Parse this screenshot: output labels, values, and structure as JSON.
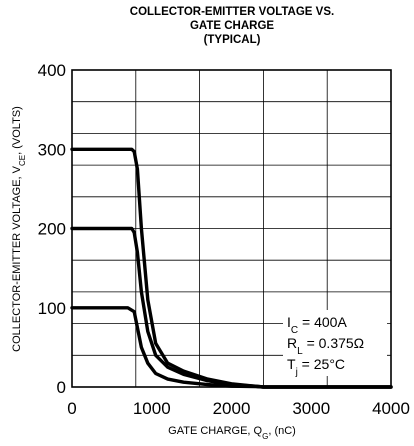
{
  "chart_data": {
    "type": "line",
    "title": [
      "COLLECTOR-EMITTER VOLTAGE VS.",
      "GATE CHARGE",
      "(TYPICAL)"
    ],
    "xlabel": {
      "main": "GATE CHARGE, Q",
      "sub": "G",
      "tail": ", (nC)"
    },
    "ylabel": {
      "main": "COLLECTOR-EMITTER VOLTAGE, V",
      "sub": "CE",
      "tail": ", (VOLTS)"
    },
    "xlim": [
      0,
      4000
    ],
    "ylim": [
      0,
      400
    ],
    "x_ticks": [
      "0",
      "1000",
      "2000",
      "3000",
      "4000"
    ],
    "y_ticks": [
      "0",
      "100",
      "200",
      "300",
      "400"
    ],
    "grid": true,
    "annotations": [
      {
        "main": "I",
        "sub": "C",
        "tail": " = 400A"
      },
      {
        "main": "R",
        "sub": "L",
        "tail": " = 0.375Ω"
      },
      {
        "main": "T",
        "sub": "j",
        "tail": " = 25°C"
      }
    ],
    "series": [
      {
        "x": [
          0,
          750,
          780,
          820,
          870,
          950,
          1050,
          1200,
          1400,
          1700,
          2000,
          2300,
          2400,
          4000
        ],
        "y": [
          300,
          300,
          297,
          275,
          200,
          110,
          55,
          30,
          20,
          10,
          4,
          1,
          0,
          0
        ]
      },
      {
        "x": [
          0,
          750,
          780,
          820,
          870,
          950,
          1050,
          1200,
          1400,
          1700,
          2000,
          2300,
          2400,
          4000
        ],
        "y": [
          200,
          200,
          195,
          170,
          120,
          70,
          40,
          25,
          16,
          8,
          3,
          1,
          0,
          0
        ]
      },
      {
        "x": [
          0,
          700,
          780,
          820,
          870,
          950,
          1050,
          1200,
          1400,
          1700,
          2000,
          2300,
          2400,
          4000
        ],
        "y": [
          100,
          100,
          95,
          75,
          50,
          30,
          17,
          10,
          6,
          3,
          1,
          0.5,
          0,
          0
        ]
      }
    ]
  }
}
